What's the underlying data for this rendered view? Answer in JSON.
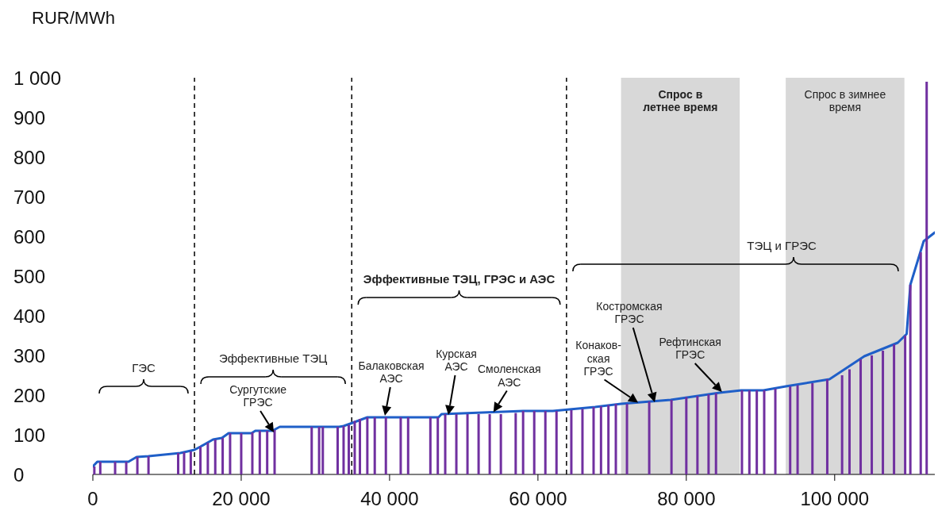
{
  "chart_data": {
    "type": "line",
    "ylabel": "RUR/MWh",
    "xlim": [
      0,
      113500
    ],
    "ylim": [
      0,
      1000
    ],
    "xticks": [
      0,
      {
        "value": 20000,
        "label": "20 000"
      },
      {
        "value": 40000,
        "label": "40 000"
      },
      {
        "value": 60000,
        "label": "60 000"
      },
      {
        "value": 80000,
        "label": "80 000"
      },
      {
        "value": 100000,
        "label": "100 000"
      }
    ],
    "yticks": [
      0,
      100,
      200,
      300,
      400,
      500,
      600,
      700,
      800,
      900,
      {
        "value": 1000,
        "label": "1 000"
      }
    ],
    "grid": false,
    "legend": false,
    "marker": "none",
    "series": [
      {
        "type": "bar",
        "color": "#7030a0",
        "x": [
          200,
          1000,
          3000,
          4500,
          6000,
          7500,
          11500,
          12300,
          13200,
          14500,
          15500,
          16500,
          17500,
          18500,
          20000,
          21500,
          22500,
          23500,
          24500,
          29500,
          30500,
          31000,
          33000,
          33800,
          34500,
          35300,
          36000,
          37000,
          38000,
          39500,
          41500,
          42500,
          45500,
          46500,
          47500,
          49000,
          50500,
          52000,
          53500,
          55000,
          57000,
          58000,
          59500,
          61000,
          62500,
          64500,
          66000,
          67500,
          68500,
          69500,
          70500,
          72000,
          75000,
          78000,
          80000,
          81500,
          83000,
          84000,
          87500,
          88500,
          89500,
          90500,
          92000,
          94000,
          95000,
          97000,
          99000,
          101000,
          102000,
          103500,
          105000,
          106500,
          108000,
          109500,
          110200,
          111600,
          112400
        ],
        "values": [
          20,
          32,
          32,
          32,
          44,
          46,
          54,
          56,
          58,
          70,
          80,
          88,
          92,
          104,
          104,
          106,
          110,
          110,
          112,
          120,
          120,
          120,
          120,
          122,
          125,
          135,
          140,
          144,
          144,
          144,
          144,
          144,
          144,
          144,
          152,
          152,
          152,
          152,
          152,
          152,
          155,
          160,
          160,
          160,
          160,
          162,
          165,
          170,
          172,
          175,
          178,
          178,
          184,
          188,
          195,
          198,
          202,
          205,
          212,
          212,
          212,
          212,
          216,
          222,
          225,
          230,
          240,
          250,
          265,
          290,
          300,
          312,
          328,
          350,
          478,
          560,
          990
        ]
      },
      {
        "color": "#1f5fc8",
        "line_style": "solid",
        "x": [
          0,
          600,
          4800,
          5900,
          7500,
          11800,
          13700,
          14500,
          16200,
          17400,
          18300,
          21400,
          21900,
          24200,
          25200,
          33200,
          33800,
          35000,
          37000,
          46600,
          47000,
          58000,
          62000,
          67700,
          71200,
          77900,
          84500,
          87400,
          90400,
          93400,
          99300,
          104000,
          108500,
          109700,
          110200,
          112000,
          113500
        ],
        "values": [
          20,
          32,
          32,
          44,
          46,
          54,
          62,
          70,
          88,
          92,
          104,
          104,
          110,
          110,
          120,
          120,
          122,
          130,
          144,
          144,
          152,
          160,
          160,
          170,
          178,
          188,
          206,
          212,
          212,
          222,
          240,
          298,
          332,
          354,
          478,
          588,
          610
        ]
      }
    ],
    "ref_lines": [
      {
        "axis": "x",
        "value": 13700,
        "line_style": "dashed",
        "color": "#000000"
      },
      {
        "axis": "x",
        "value": 34900,
        "line_style": "dashed",
        "color": "#000000"
      },
      {
        "axis": "x",
        "value": 63850,
        "line_style": "dashed",
        "color": "#000000"
      }
    ],
    "bands": [
      {
        "axis": "x",
        "from": 71200,
        "to": 87200,
        "label": "Спрос в\nлетнее время",
        "color": "#d4d4d4"
      },
      {
        "axis": "x",
        "from": 93400,
        "to": 109400,
        "label": "Спрос в зимнее\nвремя",
        "color": "#d4d4d4"
      }
    ],
    "annotations": [
      "ГЭС",
      "Эффективные ТЭЦ",
      "Эффективные ТЭЦ, ГРЭС и АЭС",
      "ТЭЦ  и ГРЭС",
      {
        "text": "Сургутские\nГРЭС",
        "x": 24400,
        "y": 106
      },
      "Балаковская\nАЭС",
      "Курская\nАЭС",
      {
        "text": "Смоленская\nАЭС",
        "x": 54000,
        "y": 157
      },
      {
        "text": "Конаков-\nская\nГРЭС",
        "x": 73500,
        "y": 181
      },
      "Костромская\nГРЭС",
      {
        "text": "Рефтинская\nГРЭС",
        "x": 84800,
        "y": 208
      }
    ]
  }
}
